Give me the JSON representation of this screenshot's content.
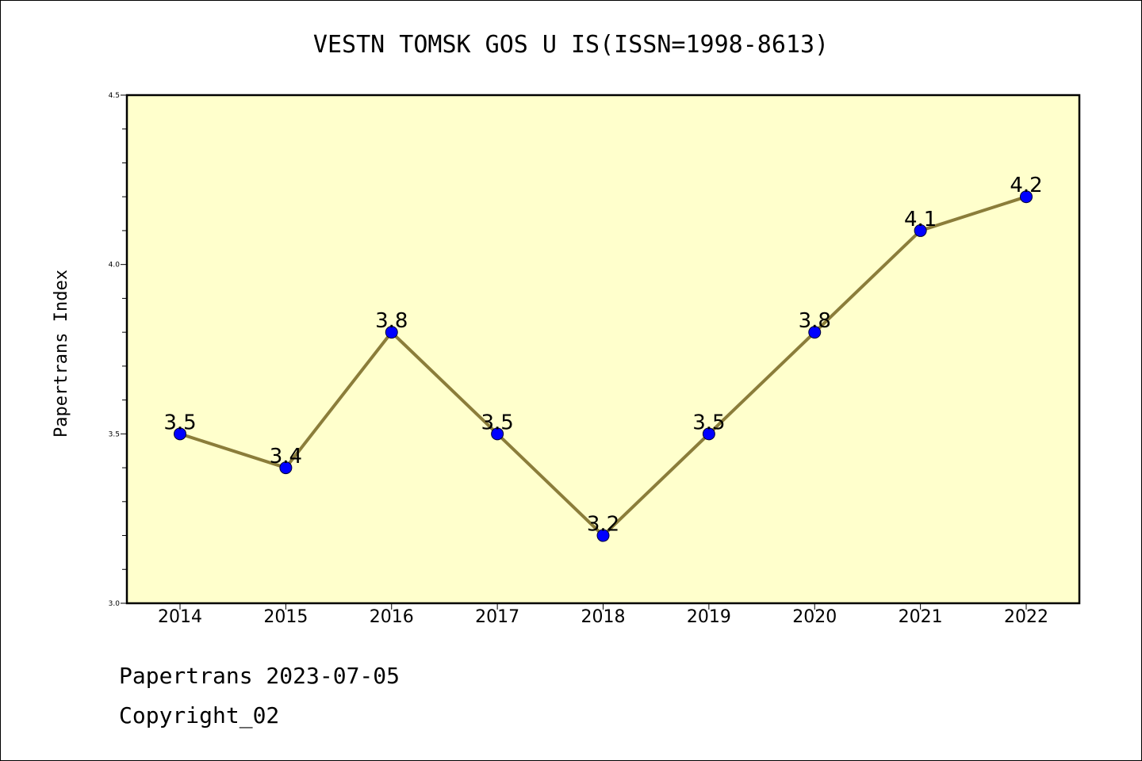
{
  "chart_data": {
    "type": "line",
    "title": "VESTN TOMSK GOS U IS(ISSN=1998-8613)",
    "xlabel": "",
    "ylabel": "Papertrans Index",
    "categories": [
      "2014",
      "2015",
      "2016",
      "2017",
      "2018",
      "2019",
      "2020",
      "2021",
      "2022"
    ],
    "series": [
      {
        "values": [
          3.5,
          3.4,
          3.8,
          3.5,
          3.2,
          3.5,
          3.8,
          4.1,
          4.2
        ]
      }
    ],
    "data_labels": [
      "3.5",
      "3.4",
      "3.8",
      "3.5",
      "3.2",
      "3.5",
      "3.8",
      "4.1",
      "4.2"
    ],
    "ylim": [
      3.0,
      4.5
    ],
    "yticks": [
      "3.0",
      "3.5",
      "4.0",
      "4.5"
    ],
    "grid": false,
    "legend": "none",
    "colors": {
      "plot_background": "#ffffcc",
      "line": "#8b7d3a",
      "marker": "#0000ff"
    }
  },
  "footer": {
    "line1": "Papertrans 2023-07-05",
    "line2": "Copyright_02"
  }
}
